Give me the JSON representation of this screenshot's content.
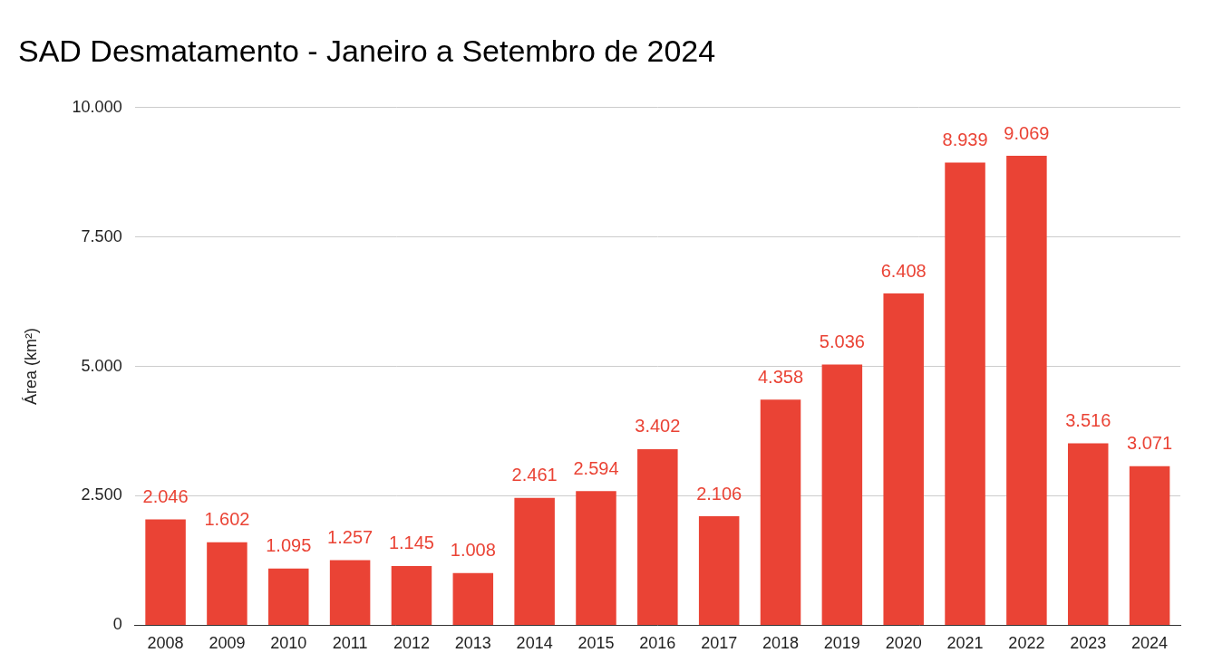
{
  "chart_data": {
    "type": "bar",
    "title": "SAD Desmatamento - Janeiro a Setembro de 2024",
    "y_label": "Área (km²)",
    "categories": [
      "2008",
      "2009",
      "2010",
      "2011",
      "2012",
      "2013",
      "2014",
      "2015",
      "2016",
      "2017",
      "2018",
      "2019",
      "2020",
      "2021",
      "2022",
      "2023",
      "2024"
    ],
    "values": [
      2046,
      1602,
      1095,
      1257,
      1145,
      1008,
      2461,
      2594,
      3402,
      2106,
      4358,
      5036,
      6408,
      8939,
      9069,
      3516,
      3071
    ],
    "value_labels": [
      "2.046",
      "1.602",
      "1.095",
      "1.257",
      "1.145",
      "1.008",
      "2.461",
      "2.594",
      "3.402",
      "2.106",
      "4.358",
      "5.036",
      "6.408",
      "8.939",
      "9.069",
      "3.516",
      "3.071"
    ],
    "color": "#ea4335",
    "ylim": [
      0,
      10000
    ],
    "yticks": [
      0,
      {
        "value": 2500,
        "label": "2.500"
      },
      {
        "value": 5000,
        "label": "5.000"
      },
      {
        "value": 7500,
        "label": "7.500"
      },
      {
        "value": 10000,
        "label": "10.000"
      }
    ],
    "grid": true,
    "data_labels": true
  }
}
